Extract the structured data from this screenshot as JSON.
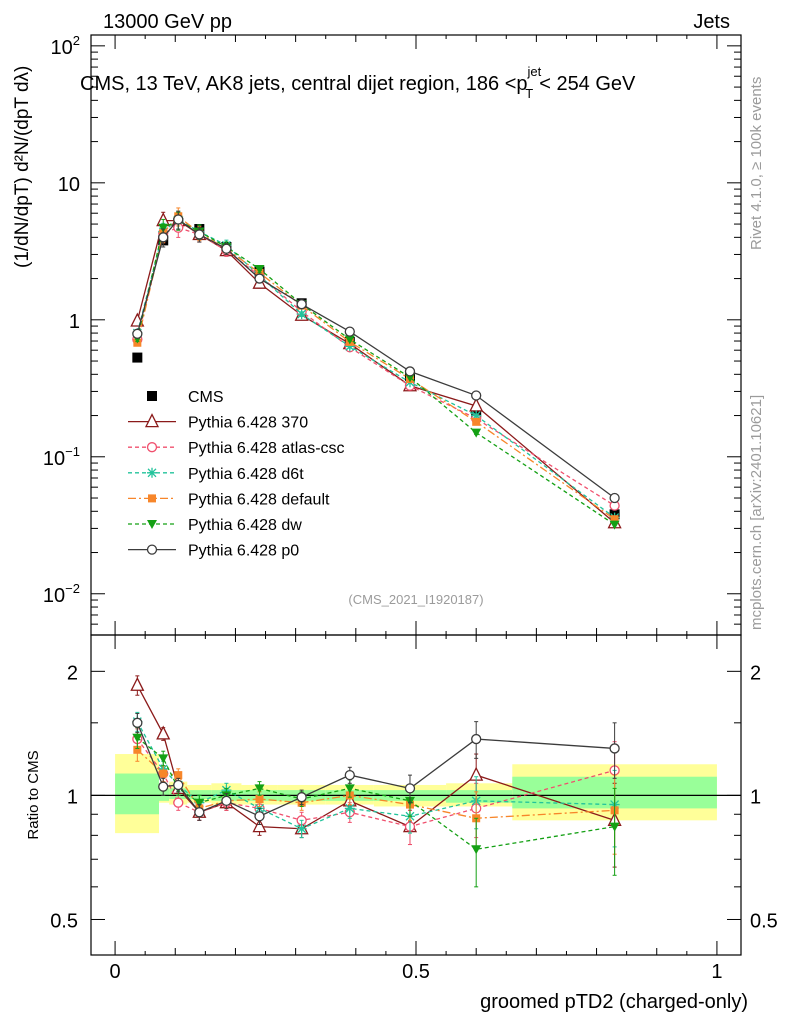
{
  "header": {
    "left": "13000 GeV pp",
    "right": "Jets"
  },
  "title": {
    "main": "CMS, 13 TeV, AK8 jets, central dijet region, 186 <",
    "pvar": "p",
    "sub": "T",
    "sup": "jet",
    "tail": "< 254 GeV"
  },
  "side_labels": {
    "rivet": "Rivet 4.1.0, ≥ 100k events",
    "mcplots": "mcplots.cern.ch [arXiv:2401.10621]"
  },
  "analysis_tag": "(CMS_2021_I1920187)",
  "colors": {
    "CMS": "#000000",
    "370": "#8b1a1a",
    "atlas": "#f0506e",
    "d6t": "#22c39b",
    "default": "#f7862a",
    "dw": "#14a014",
    "p0": "#3c3c3c",
    "band_outer": "#ffff99",
    "band_inner": "#99ff99"
  },
  "chart_data": [
    {
      "type": "line",
      "panel": "main",
      "ylabel": "(1/dN/dpT) d²N/(dpT dλ)",
      "yscale": "log",
      "ylim": [
        0.005,
        120
      ],
      "xlim": [
        -0.04,
        1.04
      ],
      "yticks": [
        {
          "value": 0.01,
          "base": "10",
          "exp": "−2"
        },
        {
          "value": 0.1,
          "base": "10",
          "exp": "−1"
        },
        {
          "value": 1,
          "base": "1",
          "exp": ""
        },
        {
          "value": 10,
          "base": "10",
          "exp": ""
        },
        {
          "value": 100,
          "base": "10",
          "exp": "2"
        }
      ],
      "x": [
        0.037,
        0.08,
        0.105,
        0.14,
        0.185,
        0.24,
        0.31,
        0.39,
        0.49,
        0.6,
        0.83
      ],
      "series": [
        {
          "name": "CMS",
          "key": "CMS",
          "marker": "square",
          "values": [
            0.53,
            3.8,
            5.1,
            4.6,
            3.4,
            2.25,
            1.32,
            0.69,
            0.39,
            0.21,
            0.038
          ]
        },
        {
          "name": "Pythia 6.428 370",
          "key": "370",
          "marker": "tri-open",
          "dash": "",
          "values": [
            0.98,
            5.3,
            5.3,
            4.2,
            3.2,
            1.85,
            1.08,
            0.67,
            0.33,
            0.235,
            0.033
          ],
          "errors": [
            0.05,
            0.15,
            0.15,
            0.12,
            0.09,
            0.06,
            0.04,
            0.03,
            0.02,
            0.025,
            0.008
          ]
        },
        {
          "name": "Pythia 6.428 atlas-csc",
          "key": "atlas",
          "marker": "circle-open",
          "dash": "4,3",
          "values": [
            0.72,
            4.3,
            4.7,
            4.2,
            3.2,
            2.1,
            1.15,
            0.63,
            0.33,
            0.19,
            0.044
          ],
          "errors": [
            0.05,
            0.15,
            0.15,
            0.12,
            0.09,
            0.06,
            0.04,
            0.03,
            0.02,
            0.025,
            0.008
          ]
        },
        {
          "name": "Pythia 6.428 d6t",
          "key": "d6t",
          "marker": "star",
          "dash": "4,3",
          "values": [
            0.8,
            4.4,
            5.4,
            4.4,
            3.5,
            2.1,
            1.1,
            0.64,
            0.35,
            0.2,
            0.036
          ],
          "errors": [
            0.05,
            0.15,
            0.15,
            0.12,
            0.09,
            0.06,
            0.04,
            0.03,
            0.02,
            0.025,
            0.008
          ]
        },
        {
          "name": "Pythia 6.428 default",
          "key": "default",
          "marker": "square-fill",
          "dash": "8,3,2,3",
          "values": [
            0.68,
            4.3,
            5.7,
            4.3,
            3.3,
            2.2,
            1.27,
            0.69,
            0.37,
            0.18,
            0.035
          ],
          "errors": [
            0.05,
            0.15,
            0.15,
            0.12,
            0.09,
            0.06,
            0.04,
            0.03,
            0.02,
            0.025,
            0.008
          ]
        },
        {
          "name": "Pythia 6.428 dw",
          "key": "dw",
          "marker": "tri-down",
          "dash": "4,3",
          "values": [
            0.73,
            4.7,
            5.3,
            4.4,
            3.4,
            2.35,
            1.3,
            0.72,
            0.38,
            0.15,
            0.032
          ],
          "errors": [
            0.05,
            0.15,
            0.15,
            0.12,
            0.09,
            0.06,
            0.04,
            0.03,
            0.02,
            0.03,
            0.008
          ]
        },
        {
          "name": "Pythia 6.428 p0",
          "key": "p0",
          "marker": "circle-open",
          "dash": "",
          "values": [
            0.79,
            4.0,
            5.4,
            4.2,
            3.3,
            2.0,
            1.3,
            0.82,
            0.42,
            0.28,
            0.05
          ],
          "errors": [
            0.05,
            0.15,
            0.15,
            0.12,
            0.09,
            0.06,
            0.04,
            0.03,
            0.03,
            0.03,
            0.008
          ]
        }
      ]
    },
    {
      "type": "line",
      "panel": "ratio",
      "ylabel": "Ratio to CMS",
      "xlabel": "groomed pTD2 (charged-only)",
      "yscale": "log",
      "ylim": [
        0.41,
        2.45
      ],
      "xlim": [
        -0.04,
        1.04
      ],
      "yticks": [
        {
          "value": 0.5,
          "label": "0.5"
        },
        {
          "value": 1,
          "label": "1"
        },
        {
          "value": 2,
          "label": "2"
        }
      ],
      "xticks": [
        {
          "value": 0,
          "label": "0"
        },
        {
          "value": 0.5,
          "label": "0.5"
        },
        {
          "value": 1,
          "label": "1"
        }
      ],
      "bins": [
        {
          "lo": 0.0,
          "hi": 0.073,
          "outer": [
            0.81,
            1.26
          ],
          "inner": [
            0.9,
            1.13
          ]
        },
        {
          "lo": 0.073,
          "hi": 0.09,
          "outer": [
            0.96,
            1.06
          ],
          "inner": [
            0.97,
            1.04
          ]
        },
        {
          "lo": 0.09,
          "hi": 0.12,
          "outer": [
            0.95,
            1.08
          ],
          "inner": [
            0.98,
            1.04
          ]
        },
        {
          "lo": 0.12,
          "hi": 0.16,
          "outer": [
            0.96,
            1.06
          ],
          "inner": [
            0.98,
            1.03
          ]
        },
        {
          "lo": 0.16,
          "hi": 0.21,
          "outer": [
            0.95,
            1.07
          ],
          "inner": [
            0.97,
            1.03
          ]
        },
        {
          "lo": 0.21,
          "hi": 0.27,
          "outer": [
            0.95,
            1.06
          ],
          "inner": [
            0.97,
            1.03
          ]
        },
        {
          "lo": 0.27,
          "hi": 0.35,
          "outer": [
            0.95,
            1.06
          ],
          "inner": [
            0.97,
            1.03
          ]
        },
        {
          "lo": 0.35,
          "hi": 0.43,
          "outer": [
            0.95,
            1.06
          ],
          "inner": [
            0.97,
            1.03
          ]
        },
        {
          "lo": 0.43,
          "hi": 0.55,
          "outer": [
            0.94,
            1.06
          ],
          "inner": [
            0.97,
            1.03
          ]
        },
        {
          "lo": 0.55,
          "hi": 0.66,
          "outer": [
            0.94,
            1.07
          ],
          "inner": [
            0.96,
            1.03
          ]
        },
        {
          "lo": 0.66,
          "hi": 1.0,
          "outer": [
            0.87,
            1.19
          ],
          "inner": [
            0.93,
            1.11
          ]
        }
      ],
      "x": [
        0.037,
        0.08,
        0.105,
        0.14,
        0.185,
        0.24,
        0.31,
        0.39,
        0.49,
        0.6,
        0.83
      ],
      "series": [
        {
          "key": "370",
          "marker": "tri-open",
          "dash": "",
          "values": [
            1.85,
            1.41,
            1.04,
            0.91,
            0.96,
            0.84,
            0.83,
            0.97,
            0.84,
            1.12,
            0.87
          ],
          "errors": [
            0.1,
            0.05,
            0.04,
            0.04,
            0.04,
            0.04,
            0.04,
            0.05,
            0.08,
            0.14,
            0.2
          ]
        },
        {
          "key": "atlas",
          "marker": "circle-open",
          "dash": "4,3",
          "values": [
            1.37,
            1.13,
            0.96,
            0.91,
            0.96,
            0.93,
            0.87,
            0.91,
            0.84,
            0.93,
            1.15
          ],
          "errors": [
            0.08,
            0.05,
            0.04,
            0.04,
            0.04,
            0.04,
            0.04,
            0.05,
            0.08,
            0.14,
            0.2
          ]
        },
        {
          "key": "d6t",
          "marker": "star",
          "dash": "4,3",
          "values": [
            1.51,
            1.16,
            1.06,
            0.96,
            1.03,
            0.93,
            0.83,
            0.93,
            0.89,
            0.97,
            0.95
          ],
          "errors": [
            0.08,
            0.05,
            0.04,
            0.04,
            0.04,
            0.04,
            0.04,
            0.05,
            0.08,
            0.14,
            0.2
          ]
        },
        {
          "key": "default",
          "marker": "square-fill",
          "dash": "8,3,2,3",
          "values": [
            1.29,
            1.13,
            1.12,
            0.93,
            0.97,
            0.98,
            0.96,
            1.0,
            0.95,
            0.88,
            0.92
          ],
          "errors": [
            0.08,
            0.05,
            0.04,
            0.04,
            0.04,
            0.04,
            0.04,
            0.05,
            0.08,
            0.14,
            0.2
          ]
        },
        {
          "key": "dw",
          "marker": "tri-down",
          "dash": "4,3",
          "values": [
            1.38,
            1.23,
            1.04,
            0.96,
            1.0,
            1.04,
            0.98,
            1.04,
            0.97,
            0.74,
            0.84
          ],
          "errors": [
            0.08,
            0.05,
            0.04,
            0.04,
            0.04,
            0.04,
            0.04,
            0.05,
            0.08,
            0.14,
            0.2
          ]
        },
        {
          "key": "p0",
          "marker": "circle-open",
          "dash": "",
          "values": [
            1.5,
            1.05,
            1.06,
            0.91,
            0.97,
            0.89,
            0.99,
            1.12,
            1.04,
            1.37,
            1.3
          ],
          "errors": [
            0.08,
            0.05,
            0.04,
            0.04,
            0.04,
            0.04,
            0.04,
            0.05,
            0.08,
            0.14,
            0.2
          ]
        }
      ]
    }
  ]
}
